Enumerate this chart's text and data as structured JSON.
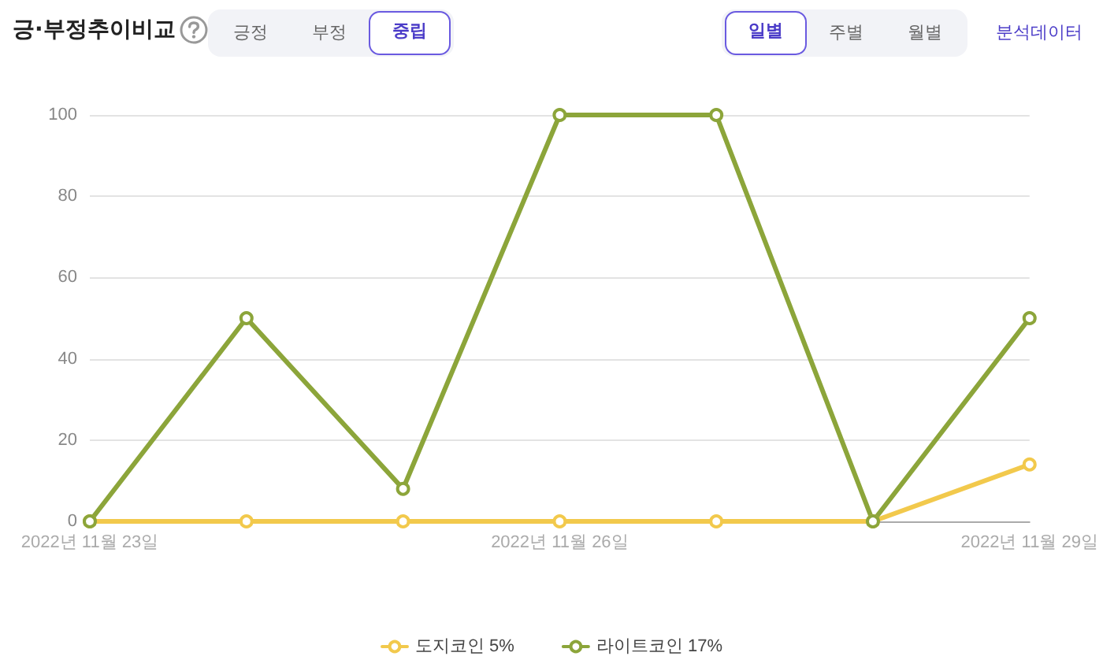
{
  "chart_data": {
    "type": "line",
    "title": "긍·부정추이비교",
    "annotations": [
      "긍정",
      "부정",
      "중립",
      "일별",
      "주별",
      "월별",
      "분석데이터"
    ],
    "categories": [
      "2022년 11월 23일",
      null,
      null,
      "2022년 11월 26일",
      null,
      null,
      "2022년 11월 29일"
    ],
    "series": [
      {
        "name": "도지코인 5%",
        "color": "#f2c94c",
        "values": [
          0,
          0,
          0,
          0,
          0,
          0,
          14
        ]
      },
      {
        "name": "라이트코인 17%",
        "color": "#8ca53a",
        "values": [
          0,
          50,
          8,
          100,
          100,
          0,
          50
        ]
      }
    ],
    "ylim": [
      0,
      100
    ],
    "yticks": [
      0,
      20,
      40,
      60,
      80,
      100
    ],
    "grid": "y",
    "legend": "bottom",
    "marker": "circle",
    "line_style": "solid"
  }
}
